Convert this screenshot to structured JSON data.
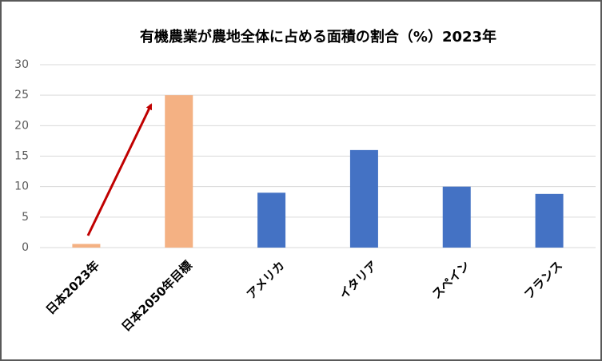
{
  "chart_data": {
    "type": "bar",
    "title": "有機農業が農地全体に占める面積の割合（%）2023年",
    "categories": [
      "日本2023年",
      "日本2050年目標",
      "アメリカ",
      "イタリア",
      "スペイン",
      "フランス"
    ],
    "values": [
      0.6,
      25,
      9,
      16,
      10,
      8.8
    ],
    "colors": [
      "#f4b183",
      "#f4b183",
      "#4472c4",
      "#4472c4",
      "#4472c4",
      "#4472c4"
    ],
    "ylim": [
      0,
      30
    ],
    "yticks": [
      0,
      5,
      10,
      15,
      20,
      25,
      30
    ],
    "grid": true
  }
}
